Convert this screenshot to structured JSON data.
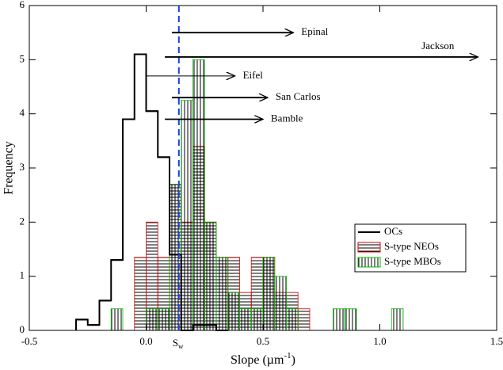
{
  "chart_data": {
    "type": "histogram",
    "xlabel": {
      "main": "Slope (µm",
      "sup": "-1",
      "end": ")"
    },
    "ylabel": "Frequency",
    "xlim": [
      -0.5,
      1.5
    ],
    "ylim": [
      0,
      6
    ],
    "xticks": [
      -0.5,
      {
        "value": 0,
        "label": "0.0"
      },
      0.5,
      {
        "value": 1,
        "label": "1.0"
      },
      1.5
    ],
    "yticks": [
      0,
      1,
      2,
      3,
      4,
      5,
      6
    ],
    "series": [
      {
        "name": "OCs",
        "color": "#000000",
        "style": "step",
        "bins": [
          -0.3,
          -0.25,
          -0.2,
          -0.15,
          -0.1,
          -0.05,
          0,
          0.05,
          0.1,
          0.15,
          0.2,
          0.25,
          0.3,
          0.35
        ],
        "values": [
          0.2,
          0.1,
          0.55,
          1.3,
          3.9,
          5.1,
          4.05,
          3.2,
          1.4,
          0,
          0.1,
          0.1,
          0
        ]
      },
      {
        "name": "S-type NEOs",
        "color": "#e00000",
        "style": "hatch-horizontal",
        "bins": [
          -0.05,
          0,
          0.05,
          0.1,
          0.15,
          0.2,
          0.25,
          0.3,
          0.35,
          0.4,
          0.45,
          0.5,
          0.55,
          0.6,
          0.65,
          0.7
        ],
        "values": [
          1.35,
          2.0,
          1.35,
          2.7,
          2.0,
          3.4,
          2.0,
          1.35,
          1.35,
          0.7,
          1.35,
          1.35,
          0.7,
          0.7,
          0.4
        ]
      },
      {
        "name": "S-type MBOs",
        "color": "#00c000",
        "style": "hatch-vertical",
        "bins": [
          -0.15,
          -0.1,
          -0.05,
          0,
          0.05,
          0.1,
          0.15,
          0.2,
          0.25,
          0.3,
          0.35,
          0.4,
          0.45,
          0.5,
          0.55,
          0.6,
          0.65,
          0.7,
          0.75,
          0.8,
          0.85,
          0.9,
          0.95,
          1.0,
          1.05,
          1.1
        ],
        "values": [
          0.4,
          0,
          0,
          0.4,
          0.4,
          2.7,
          4.25,
          5.0,
          2.0,
          1.35,
          0.7,
          0.4,
          0.4,
          1.35,
          1.0,
          0.4,
          0,
          0,
          0,
          0.4,
          0.4,
          0,
          0,
          0,
          0.4
        ]
      }
    ],
    "vline": {
      "x": 0.14,
      "color": "#1a3fe0",
      "label": "S",
      "label_sub": "w"
    },
    "annotations": [
      {
        "text": "Epinal",
        "x_start": 0.11,
        "x_end": 0.63,
        "y": 5.5
      },
      {
        "text": "Jackson",
        "x_start": 0.08,
        "x_end": 1.42,
        "y": 5.05
      },
      {
        "text": "Eifel",
        "x_start": 0.0,
        "x_end": 0.38,
        "y": 4.7
      },
      {
        "text": "San Carlos",
        "x_start": 0.11,
        "x_end": 0.52,
        "y": 4.3
      },
      {
        "text": "Bamble",
        "x_start": 0.08,
        "x_end": 0.5,
        "y": 3.9
      }
    ],
    "legend": "lower right"
  }
}
